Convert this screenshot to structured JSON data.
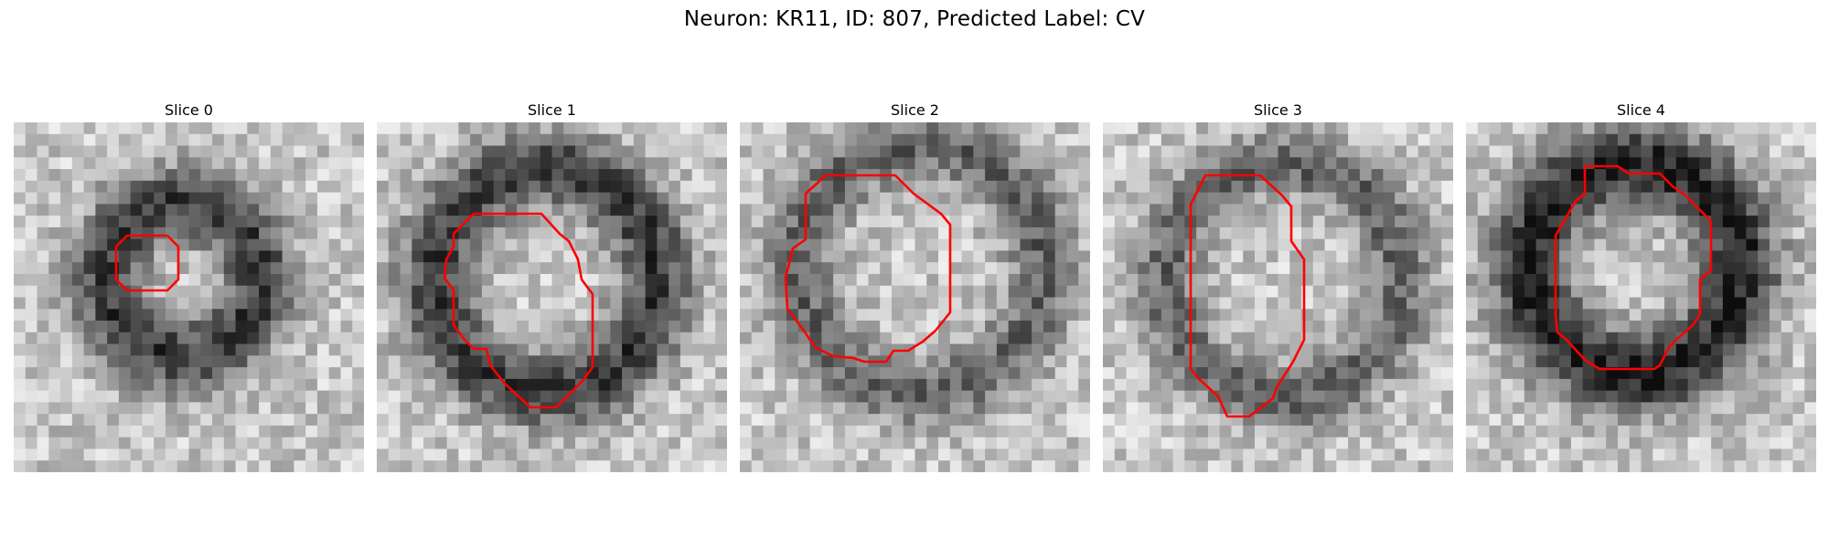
{
  "figure": {
    "title": "Neuron: KR11, ID: 807, Predicted Label: CV",
    "contour_color": "#ff0000",
    "colormap": "gray"
  },
  "panels": [
    {
      "title": "Slice 0"
    },
    {
      "title": "Slice 1"
    },
    {
      "title": "Slice 2"
    },
    {
      "title": "Slice 3"
    },
    {
      "title": "Slice 4"
    }
  ]
}
